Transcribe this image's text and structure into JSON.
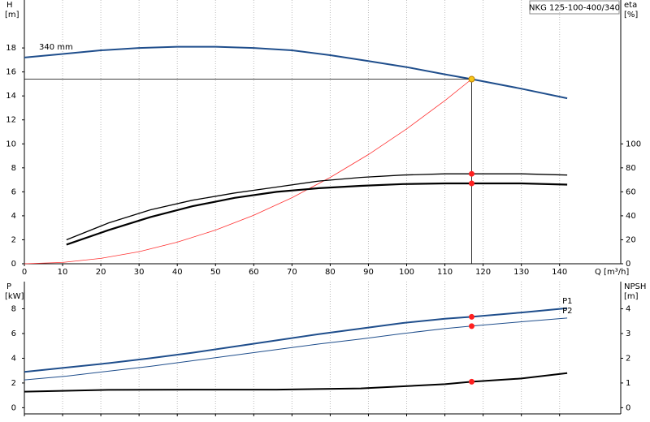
{
  "title": "NKG 125-100-400/340",
  "chart_data": [
    {
      "type": "line",
      "y_label": "H",
      "y_unit": "[m]",
      "y2_label": "eta",
      "y2_unit": "[%]",
      "x_label": "Q [m³/h]",
      "xlim": [
        0,
        156
      ],
      "xticks": [
        0,
        10,
        20,
        30,
        40,
        50,
        60,
        70,
        80,
        90,
        100,
        110,
        120,
        130,
        140
      ],
      "ylim": [
        0,
        22
      ],
      "yticks": [
        0,
        2,
        4,
        6,
        8,
        10,
        12,
        14,
        16,
        18
      ],
      "y2lim": [
        0,
        220
      ],
      "y2ticks": [
        0,
        20,
        40,
        60,
        80,
        100
      ],
      "grid": true,
      "duty_q": 117,
      "series": [
        {
          "name": "340 mm",
          "color": "#1f4e8c",
          "line_width": 2,
          "marker": "#f5c518",
          "x": [
            0,
            10,
            20,
            30,
            40,
            50,
            60,
            70,
            80,
            90,
            100,
            110,
            117,
            130,
            142
          ],
          "values": [
            17.2,
            17.5,
            17.8,
            18.0,
            18.1,
            18.1,
            18.0,
            17.8,
            17.4,
            16.9,
            16.4,
            15.8,
            15.4,
            14.6,
            13.8
          ]
        },
        {
          "color": "#ff3030",
          "line_width": 0.8,
          "x": [
            0,
            10,
            20,
            30,
            40,
            50,
            60,
            70,
            80,
            90,
            100,
            110,
            117
          ],
          "values": [
            0,
            0.11,
            0.45,
            1.01,
            1.8,
            2.81,
            4.05,
            5.51,
            7.2,
            9.11,
            11.25,
            13.61,
            15.4
          ]
        },
        {
          "color": "#000000",
          "line_width": 1.3,
          "axis": "y2",
          "marker": "#ff2020",
          "x": [
            11,
            22,
            33,
            44,
            55,
            66,
            77,
            88,
            99,
            110,
            117,
            130,
            142
          ],
          "values": [
            20,
            34,
            45,
            53,
            59,
            64,
            69,
            72,
            74,
            75,
            75,
            75,
            74
          ]
        },
        {
          "color": "#000000",
          "line_width": 2.2,
          "axis": "y2",
          "marker": "#ff2020",
          "x": [
            11,
            22,
            33,
            44,
            55,
            66,
            77,
            88,
            99,
            110,
            117,
            130,
            142
          ],
          "values": [
            16,
            28,
            39,
            48,
            55,
            60,
            63,
            65,
            66.5,
            67,
            67,
            67,
            66
          ]
        }
      ]
    },
    {
      "type": "line",
      "y_label": "P",
      "y_unit": "[kW]",
      "y2_label": "NPSH",
      "y2_unit": "[m]",
      "xlim": [
        0,
        156
      ],
      "xticks": [
        0,
        10,
        20,
        30,
        40,
        50,
        60,
        70,
        80,
        90,
        100,
        110,
        120,
        130,
        140
      ],
      "ylim": [
        -0.5,
        10.2
      ],
      "yticks": [
        0,
        2,
        4,
        6,
        8
      ],
      "y2lim": [
        -0.25,
        5.1
      ],
      "y2ticks": [
        0,
        1,
        2,
        3,
        4
      ],
      "grid": true,
      "duty_q": 117,
      "series": [
        {
          "name": "P1",
          "color": "#1f4e8c",
          "line_width": 2,
          "marker": "#ff2020",
          "x": [
            0,
            11,
            22,
            33,
            44,
            55,
            66,
            77,
            88,
            99,
            110,
            117,
            130,
            142
          ],
          "values": [
            2.9,
            3.25,
            3.6,
            4.0,
            4.45,
            4.95,
            5.45,
            5.95,
            6.4,
            6.85,
            7.2,
            7.35,
            7.7,
            8.05
          ]
        },
        {
          "name": "P2",
          "color": "#1f4e8c",
          "line_width": 1,
          "marker": "#ff2020",
          "x": [
            0,
            11,
            22,
            33,
            44,
            55,
            66,
            77,
            88,
            99,
            110,
            117,
            130,
            142
          ],
          "values": [
            2.25,
            2.55,
            2.95,
            3.35,
            3.8,
            4.25,
            4.7,
            5.15,
            5.55,
            6.0,
            6.4,
            6.6,
            6.95,
            7.25
          ]
        },
        {
          "color": "#000000",
          "line_width": 2,
          "axis": "y2",
          "marker": "#ff2020",
          "x": [
            0,
            22,
            44,
            66,
            88,
            110,
            117,
            130,
            142
          ],
          "values": [
            0.65,
            0.72,
            0.73,
            0.73,
            0.78,
            0.95,
            1.05,
            1.18,
            1.4
          ]
        }
      ]
    }
  ]
}
